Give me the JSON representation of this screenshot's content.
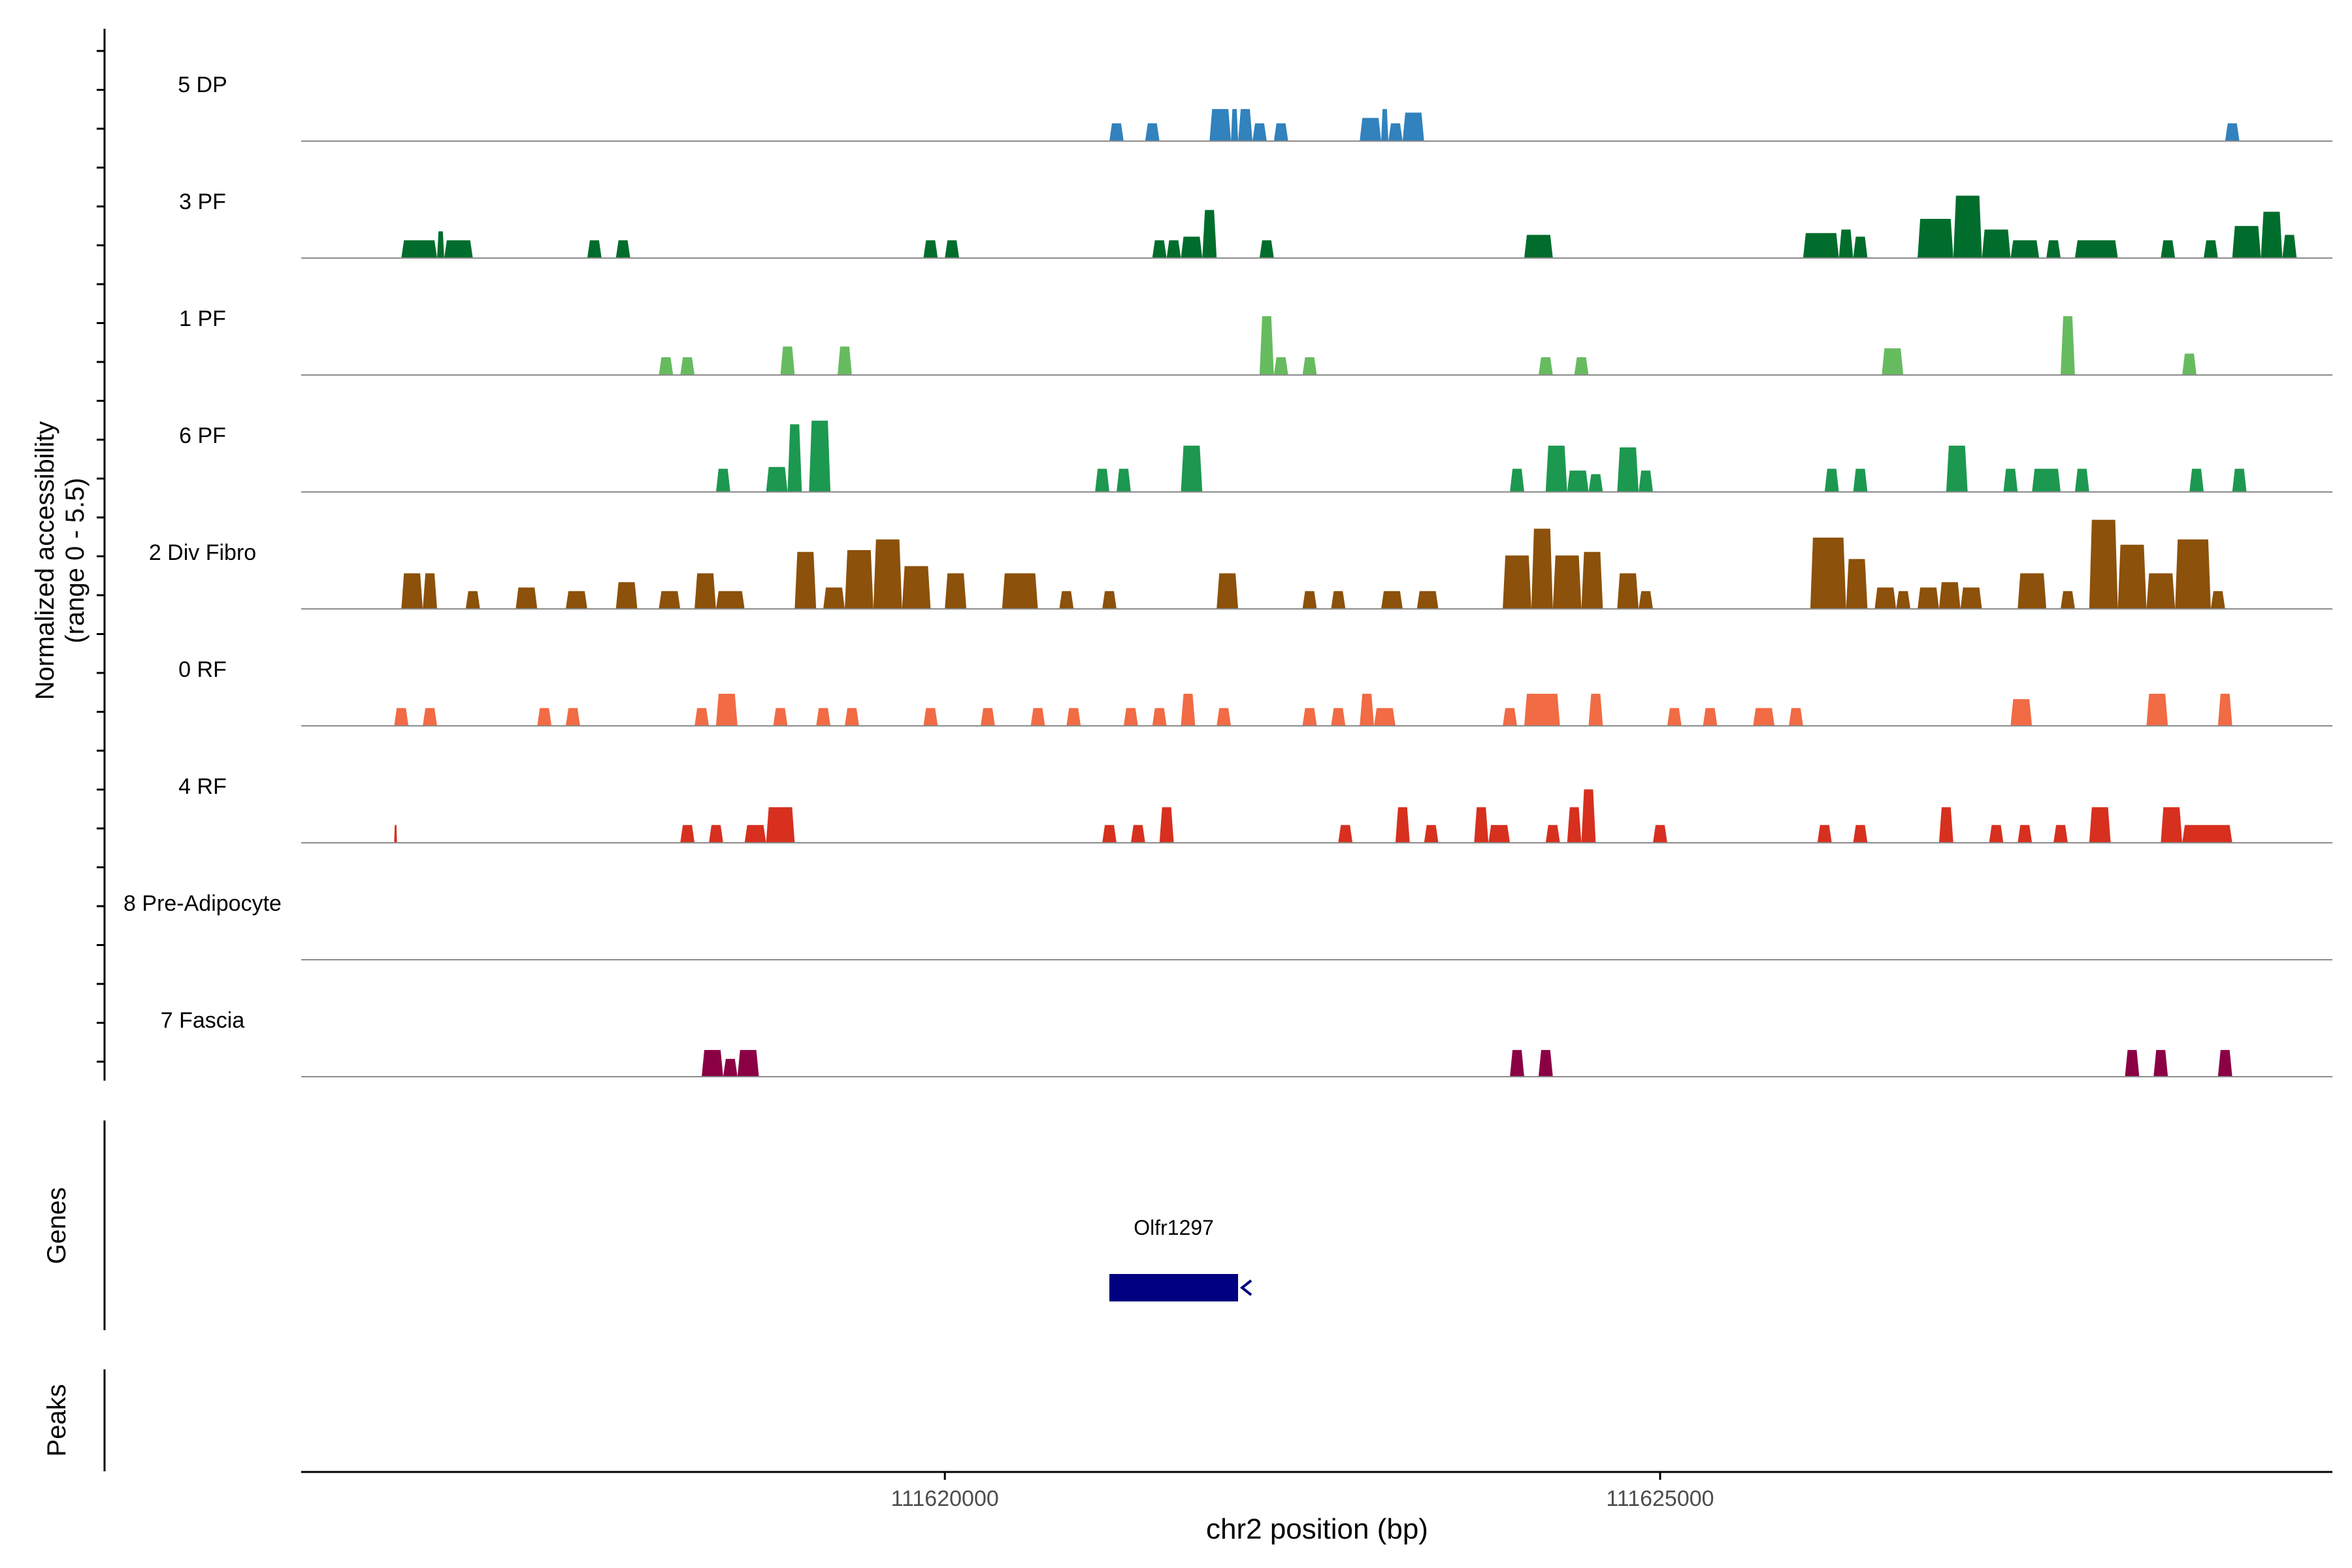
{
  "chart_data": {
    "type": "area",
    "title": "",
    "ylabel": "Normalized accessibility\n(range 0 - 5.5)",
    "xlabel": "chr2 position (bp)",
    "chromosome": "chr2",
    "xlim": [
      111615500,
      111629700
    ],
    "ylim": [
      0,
      5.5
    ],
    "x_ticks": [
      111620000,
      111625000
    ],
    "x_tick_labels": [
      "111620000",
      "111625000"
    ],
    "series": [
      {
        "name": "5 DP",
        "color": "#3182bd",
        "peaks": [
          [
            111621150,
            111621250,
            1.0
          ],
          [
            111621400,
            111621500,
            1.0
          ],
          [
            111621850,
            111622000,
            1.8
          ],
          [
            111622000,
            111622050,
            1.8
          ],
          [
            111622050,
            111622150,
            1.8
          ],
          [
            111622150,
            111622250,
            1.0
          ],
          [
            111622300,
            111622400,
            1.0
          ],
          [
            111622900,
            111623050,
            1.3
          ],
          [
            111623050,
            111623100,
            1.8
          ],
          [
            111623100,
            111623200,
            1.0
          ],
          [
            111623200,
            111623350,
            1.6
          ],
          [
            111628950,
            111629050,
            1.0
          ]
        ]
      },
      {
        "name": "3 PF",
        "color": "#006d2c",
        "peaks": [
          [
            111616200,
            111616450,
            1.0
          ],
          [
            111616450,
            111616500,
            1.5
          ],
          [
            111616500,
            111616700,
            1.0
          ],
          [
            111617500,
            111617600,
            1.0
          ],
          [
            111617700,
            111617800,
            1.0
          ],
          [
            111619850,
            111619950,
            1.0
          ],
          [
            111620000,
            111620100,
            1.0
          ],
          [
            111621450,
            111621550,
            1.0
          ],
          [
            111621550,
            111621650,
            1.0
          ],
          [
            111621650,
            111621800,
            1.2
          ],
          [
            111621800,
            111621900,
            2.7
          ],
          [
            111622200,
            111622300,
            1.0
          ],
          [
            111624050,
            111624250,
            1.3
          ],
          [
            111626000,
            111626250,
            1.4
          ],
          [
            111626250,
            111626350,
            1.6
          ],
          [
            111626350,
            111626450,
            1.2
          ],
          [
            111626800,
            111627050,
            2.2
          ],
          [
            111627050,
            111627250,
            3.5
          ],
          [
            111627250,
            111627450,
            1.6
          ],
          [
            111627450,
            111627650,
            1.0
          ],
          [
            111627700,
            111627800,
            1.0
          ],
          [
            111627900,
            111628200,
            1.0
          ],
          [
            111628500,
            111628600,
            1.0
          ],
          [
            111628800,
            111628900,
            1.0
          ],
          [
            111629000,
            111629200,
            1.8
          ],
          [
            111629200,
            111629350,
            2.6
          ],
          [
            111629350,
            111629450,
            1.3
          ]
        ]
      },
      {
        "name": "1 PF",
        "color": "#66bb5f",
        "peaks": [
          [
            111618000,
            111618100,
            1.0
          ],
          [
            111618150,
            111618250,
            1.0
          ],
          [
            111618850,
            111618950,
            1.6
          ],
          [
            111619250,
            111619350,
            1.6
          ],
          [
            111622200,
            111622300,
            3.3
          ],
          [
            111622300,
            111622400,
            1.0
          ],
          [
            111622500,
            111622600,
            1.0
          ],
          [
            111624150,
            111624250,
            1.0
          ],
          [
            111624400,
            111624500,
            1.0
          ],
          [
            111626550,
            111626700,
            1.5
          ],
          [
            111627800,
            111627900,
            3.3
          ],
          [
            111628650,
            111628750,
            1.2
          ]
        ]
      },
      {
        "name": "6 PF",
        "color": "#1d9850",
        "peaks": [
          [
            111618400,
            111618500,
            1.3
          ],
          [
            111618750,
            111618900,
            1.4
          ],
          [
            111618900,
            111619000,
            3.8
          ],
          [
            111619050,
            111619200,
            4.0
          ],
          [
            111621050,
            111621150,
            1.3
          ],
          [
            111621200,
            111621300,
            1.3
          ],
          [
            111621650,
            111621800,
            2.6
          ],
          [
            111623950,
            111624050,
            1.3
          ],
          [
            111624200,
            111624350,
            2.6
          ],
          [
            111624350,
            111624500,
            1.2
          ],
          [
            111624500,
            111624600,
            1.0
          ],
          [
            111624700,
            111624850,
            2.5
          ],
          [
            111624850,
            111624950,
            1.2
          ],
          [
            111626150,
            111626250,
            1.3
          ],
          [
            111626350,
            111626450,
            1.3
          ],
          [
            111627000,
            111627150,
            2.6
          ],
          [
            111627400,
            111627500,
            1.3
          ],
          [
            111627600,
            111627800,
            1.3
          ],
          [
            111627900,
            111628000,
            1.3
          ],
          [
            111628700,
            111628800,
            1.3
          ],
          [
            111629000,
            111629100,
            1.3
          ]
        ]
      },
      {
        "name": "2 Div Fibro",
        "color": "#8c510a",
        "peaks": [
          [
            111616200,
            111616350,
            2.0
          ],
          [
            111616350,
            111616450,
            2.0
          ],
          [
            111616650,
            111616750,
            1.0
          ],
          [
            111617000,
            111617150,
            1.2
          ],
          [
            111617350,
            111617500,
            1.0
          ],
          [
            111617700,
            111617850,
            1.5
          ],
          [
            111618000,
            111618150,
            1.0
          ],
          [
            111618250,
            111618400,
            2.0
          ],
          [
            111618400,
            111618600,
            1.0
          ],
          [
            111618950,
            111619100,
            3.2
          ],
          [
            111619150,
            111619300,
            1.2
          ],
          [
            111619300,
            111619500,
            3.3
          ],
          [
            111619500,
            111619700,
            3.9
          ],
          [
            111619700,
            111619900,
            2.4
          ],
          [
            111620000,
            111620150,
            2.0
          ],
          [
            111620400,
            111620650,
            2.0
          ],
          [
            111620800,
            111620900,
            1.0
          ],
          [
            111621100,
            111621200,
            1.0
          ],
          [
            111621900,
            111622050,
            2.0
          ],
          [
            111622500,
            111622600,
            1.0
          ],
          [
            111622700,
            111622800,
            1.0
          ],
          [
            111623050,
            111623200,
            1.0
          ],
          [
            111623300,
            111623450,
            1.0
          ],
          [
            111623900,
            111624100,
            3.0
          ],
          [
            111624100,
            111624250,
            4.5
          ],
          [
            111624250,
            111624450,
            3.0
          ],
          [
            111624450,
            111624600,
            3.2
          ],
          [
            111624700,
            111624850,
            2.0
          ],
          [
            111624850,
            111624950,
            1.0
          ],
          [
            111626050,
            111626300,
            4.0
          ],
          [
            111626300,
            111626450,
            2.8
          ],
          [
            111626500,
            111626650,
            1.2
          ],
          [
            111626650,
            111626750,
            1.0
          ],
          [
            111626800,
            111626950,
            1.2
          ],
          [
            111626950,
            111627100,
            1.5
          ],
          [
            111627100,
            111627250,
            1.2
          ],
          [
            111627500,
            111627700,
            2.0
          ],
          [
            111627800,
            111627900,
            1.0
          ],
          [
            111628000,
            111628200,
            5.0
          ],
          [
            111628200,
            111628400,
            3.6
          ],
          [
            111628400,
            111628600,
            2.0
          ],
          [
            111628600,
            111628850,
            3.9
          ],
          [
            111628850,
            111628950,
            1.0
          ]
        ]
      },
      {
        "name": "0 RF",
        "color": "#f16b44",
        "peaks": [
          [
            111616150,
            111616250,
            1.0
          ],
          [
            111616350,
            111616450,
            1.0
          ],
          [
            111617150,
            111617250,
            1.0
          ],
          [
            111617350,
            111617450,
            1.0
          ],
          [
            111618250,
            111618350,
            1.0
          ],
          [
            111618400,
            111618550,
            1.8
          ],
          [
            111618800,
            111618900,
            1.0
          ],
          [
            111619100,
            111619200,
            1.0
          ],
          [
            111619300,
            111619400,
            1.0
          ],
          [
            111619850,
            111619950,
            1.0
          ],
          [
            111620250,
            111620350,
            1.0
          ],
          [
            111620600,
            111620700,
            1.0
          ],
          [
            111620850,
            111620950,
            1.0
          ],
          [
            111621250,
            111621350,
            1.0
          ],
          [
            111621450,
            111621550,
            1.0
          ],
          [
            111621650,
            111621750,
            1.8
          ],
          [
            111621900,
            111622000,
            1.0
          ],
          [
            111622500,
            111622600,
            1.0
          ],
          [
            111622700,
            111622800,
            1.0
          ],
          [
            111622900,
            111623000,
            1.8
          ],
          [
            111623000,
            111623150,
            1.0
          ],
          [
            111623900,
            111624000,
            1.0
          ],
          [
            111624050,
            111624300,
            1.8
          ],
          [
            111624500,
            111624600,
            1.8
          ],
          [
            111625050,
            111625150,
            1.0
          ],
          [
            111625300,
            111625400,
            1.0
          ],
          [
            111625650,
            111625800,
            1.0
          ],
          [
            111625900,
            111626000,
            1.0
          ],
          [
            111627450,
            111627600,
            1.5
          ],
          [
            111628400,
            111628550,
            1.8
          ],
          [
            111628900,
            111629000,
            1.8
          ]
        ]
      },
      {
        "name": "4 RF",
        "color": "#d7301f",
        "peaks": [
          [
            111616150,
            111616170,
            1.0
          ],
          [
            111618150,
            111618250,
            1.0
          ],
          [
            111618350,
            111618450,
            1.0
          ],
          [
            111618600,
            111618750,
            1.0
          ],
          [
            111618750,
            111618950,
            2.0
          ],
          [
            111621100,
            111621200,
            1.0
          ],
          [
            111621300,
            111621400,
            1.0
          ],
          [
            111621500,
            111621600,
            2.0
          ],
          [
            111622750,
            111622850,
            1.0
          ],
          [
            111623150,
            111623250,
            2.0
          ],
          [
            111623350,
            111623450,
            1.0
          ],
          [
            111623700,
            111623800,
            2.0
          ],
          [
            111623800,
            111623950,
            1.0
          ],
          [
            111624200,
            111624300,
            1.0
          ],
          [
            111624350,
            111624450,
            2.0
          ],
          [
            111624450,
            111624550,
            3.0
          ],
          [
            111624950,
            111625050,
            1.0
          ],
          [
            111626100,
            111626200,
            1.0
          ],
          [
            111626350,
            111626450,
            1.0
          ],
          [
            111626950,
            111627050,
            2.0
          ],
          [
            111627300,
            111627400,
            1.0
          ],
          [
            111627500,
            111627600,
            1.0
          ],
          [
            111627750,
            111627850,
            1.0
          ],
          [
            111628000,
            111628150,
            2.0
          ],
          [
            111628500,
            111628650,
            2.0
          ],
          [
            111628650,
            111629000,
            1.0
          ]
        ]
      },
      {
        "name": "8 Pre-Adipocyte",
        "color": "#7a0177",
        "peaks": []
      },
      {
        "name": "7 Fascia",
        "color": "#8b0045",
        "peaks": [
          [
            111618300,
            111618450,
            1.5
          ],
          [
            111618450,
            111618550,
            1.0
          ],
          [
            111618550,
            111618700,
            1.5
          ],
          [
            111623950,
            111624050,
            1.5
          ],
          [
            111624150,
            111624250,
            1.5
          ],
          [
            111628250,
            111628350,
            1.5
          ],
          [
            111628450,
            111628550,
            1.5
          ],
          [
            111628900,
            111629000,
            1.5
          ]
        ]
      }
    ],
    "genes": [
      {
        "name": "Olfr1297",
        "start": 111621150,
        "end": 111622050,
        "strand": "-",
        "color": "#000080"
      }
    ],
    "track_labels": {
      "genes": "Genes",
      "peaks": "Peaks"
    }
  }
}
